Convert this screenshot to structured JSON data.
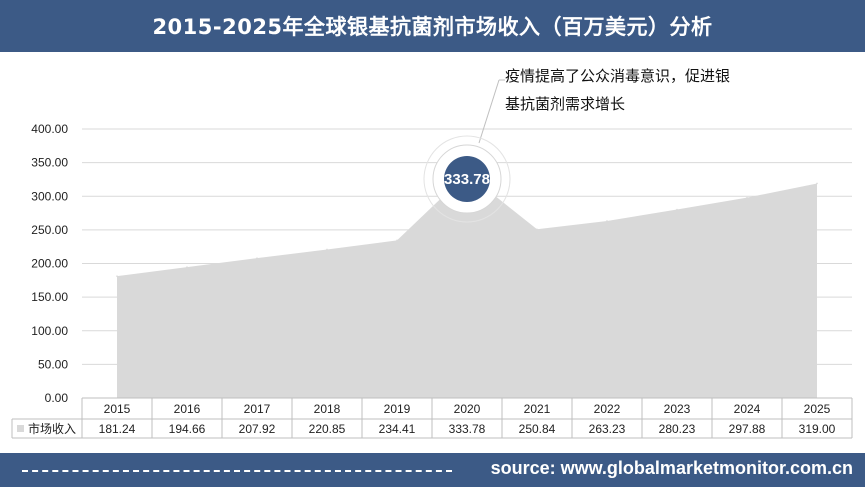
{
  "header": {
    "title": "2015-2025年全球银基抗菌剂市场收入（百万美元）分析"
  },
  "annotation": {
    "line1": "疫情提高了公众消毒意识，促进银",
    "line2": "基抗菌剂需求增长"
  },
  "footer": {
    "source": "source: www.globalmarketmonitor.com.cn"
  },
  "colors": {
    "header_bg": "#3c5a86",
    "area_fill": "#d9d9d9",
    "callout_fill": "#3c5a86"
  },
  "chart_data": {
    "type": "area",
    "categories": [
      "2015",
      "2016",
      "2017",
      "2018",
      "2019",
      "2020",
      "2021",
      "2022",
      "2023",
      "2024",
      "2025"
    ],
    "series": [
      {
        "name": "市场收入",
        "values": [
          181.24,
          194.66,
          207.92,
          220.85,
          234.41,
          333.78,
          250.84,
          263.23,
          280.23,
          297.88,
          319.0
        ],
        "value_labels": [
          "181.24",
          "194.66",
          "207.92",
          "220.85",
          "234.41",
          "333.78",
          "250.84",
          "263.23",
          "280.23",
          "297.88",
          "319.00"
        ]
      }
    ],
    "y_ticks": [
      "0.00",
      "50.00",
      "100.00",
      "150.00",
      "200.00",
      "250.00",
      "300.00",
      "350.00",
      "400.00"
    ],
    "ylim": [
      0,
      400
    ],
    "grid": true,
    "data_table": true,
    "highlight": {
      "category": "2020",
      "label": "333.78"
    }
  }
}
